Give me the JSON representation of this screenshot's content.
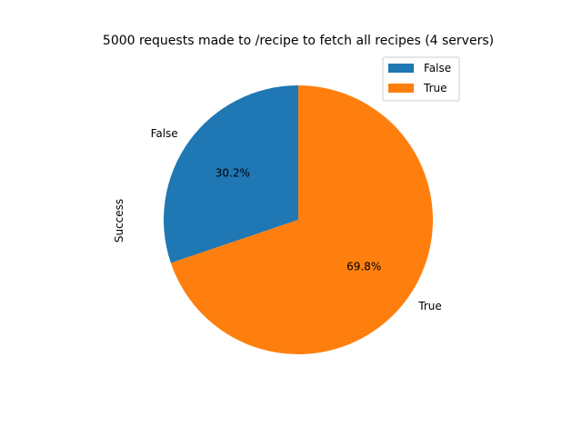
{
  "chart_data": {
    "type": "pie",
    "title": "5000 requests made to /recipe to fetch all recipes (4 servers)",
    "ylabel": "Success",
    "categories": [
      "False",
      "True"
    ],
    "values": [
      30.2,
      69.8
    ],
    "value_labels": [
      "30.2%",
      "69.8%"
    ],
    "colors": [
      "#1f77b4",
      "#ff7f0e"
    ],
    "legend": [
      "False",
      "True"
    ],
    "legend_placement": "top-right",
    "start_angle_deg": 90,
    "direction": "counterclockwise"
  }
}
